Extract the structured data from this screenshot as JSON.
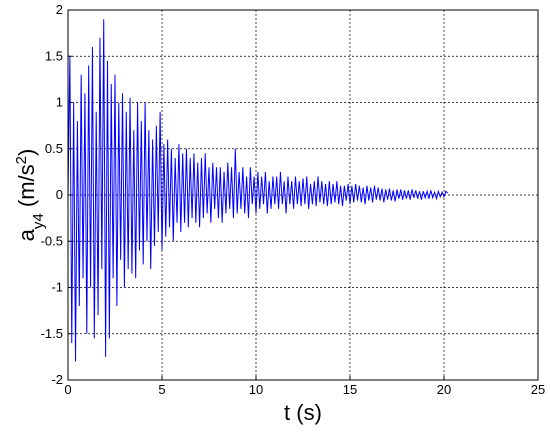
{
  "chart_data": {
    "type": "line",
    "xlabel": "t (s)",
    "ylabel": [
      "a",
      "y4",
      " (m/s",
      "2",
      ")"
    ],
    "color": "#0000ff",
    "grid": true,
    "xlim": [
      0,
      25
    ],
    "xticks": [
      0,
      5,
      10,
      15,
      20,
      25
    ],
    "ylim": [
      -2,
      2
    ],
    "yticks": [
      -2,
      -1.5,
      -1,
      -0.5,
      0,
      0.5,
      1,
      1.5,
      2
    ],
    "x": [
      0,
      0.1,
      0.2,
      0.3,
      0.4,
      0.5,
      0.6,
      0.7,
      0.8,
      0.9,
      1,
      1.1,
      1.2,
      1.3,
      1.4,
      1.5,
      1.6,
      1.7,
      1.8,
      1.9,
      2,
      2.1,
      2.2,
      2.3,
      2.4,
      2.5,
      2.6,
      2.7,
      2.8,
      2.9,
      3,
      3.1,
      3.2,
      3.3,
      3.4,
      3.5,
      3.6,
      3.7,
      3.8,
      3.9,
      4,
      4.1,
      4.2,
      4.3,
      4.4,
      4.5,
      4.6,
      4.7,
      4.8,
      4.9,
      5,
      5.1,
      5.2,
      5.3,
      5.4,
      5.5,
      5.6,
      5.7,
      5.8,
      5.9,
      6,
      6.1,
      6.2,
      6.3,
      6.4,
      6.5,
      6.6,
      6.7,
      6.8,
      6.9,
      7,
      7.1,
      7.2,
      7.3,
      7.4,
      7.5,
      7.6,
      7.7,
      7.8,
      7.9,
      8,
      8.1,
      8.2,
      8.3,
      8.4,
      8.5,
      8.6,
      8.7,
      8.8,
      8.9,
      9,
      9.1,
      9.2,
      9.3,
      9.4,
      9.5,
      9.6,
      9.7,
      9.8,
      9.9,
      10,
      10.1,
      10.2,
      10.3,
      10.4,
      10.5,
      10.6,
      10.7,
      10.8,
      10.9,
      11,
      11.1,
      11.2,
      11.3,
      11.4,
      11.5,
      11.6,
      11.7,
      11.8,
      11.9,
      12,
      12.1,
      12.2,
      12.3,
      12.4,
      12.5,
      12.6,
      12.7,
      12.8,
      12.9,
      13,
      13.1,
      13.2,
      13.3,
      13.4,
      13.5,
      13.6,
      13.7,
      13.8,
      13.9,
      14,
      14.1,
      14.2,
      14.3,
      14.4,
      14.5,
      14.6,
      14.7,
      14.8,
      14.9,
      15,
      15.1,
      15.2,
      15.3,
      15.4,
      15.5,
      15.6,
      15.7,
      15.8,
      15.9,
      16,
      16.1,
      16.2,
      16.3,
      16.4,
      16.5,
      16.6,
      16.7,
      16.8,
      16.9,
      17,
      17.1,
      17.2,
      17.3,
      17.4,
      17.5,
      17.6,
      17.7,
      17.8,
      17.9,
      18,
      18.1,
      18.2,
      18.3,
      18.4,
      18.5,
      18.6,
      18.7,
      18.8,
      18.9,
      19,
      19.1,
      19.2,
      19.3,
      19.4,
      19.5,
      19.6,
      19.7,
      19.8,
      19.9,
      20,
      20.1,
      20.2
    ],
    "values": [
      0,
      1.5,
      -1.6,
      1.0,
      -1.8,
      0.8,
      -1.2,
      1.3,
      -0.9,
      1.1,
      -1.5,
      1.4,
      -1.0,
      1.6,
      -1.55,
      0.9,
      -1.3,
      1.7,
      -0.8,
      1.9,
      -1.75,
      1.45,
      -1.55,
      1.2,
      -0.9,
      1.3,
      -1.2,
      1.0,
      -0.7,
      1.1,
      -1.0,
      0.9,
      -0.8,
      1.05,
      -0.85,
      0.7,
      -0.9,
      1.0,
      -0.6,
      0.8,
      -0.75,
      1.0,
      -0.5,
      0.7,
      -0.8,
      0.6,
      -0.55,
      0.75,
      -0.4,
      0.9,
      -0.6,
      0.55,
      -0.45,
      0.6,
      -0.35,
      0.5,
      -0.5,
      0.4,
      -0.3,
      0.55,
      -0.4,
      0.45,
      -0.3,
      0.5,
      -0.35,
      0.4,
      -0.25,
      0.45,
      -0.3,
      0.35,
      -0.35,
      0.4,
      -0.25,
      0.45,
      -0.2,
      0.3,
      -0.3,
      0.35,
      -0.15,
      0.3,
      -0.25,
      0.3,
      -0.3,
      0.25,
      -0.2,
      0.35,
      -0.15,
      0.3,
      -0.25,
      0.5,
      -0.2,
      0.25,
      -0.15,
      0.3,
      -0.2,
      0.2,
      -0.25,
      0.3,
      -0.1,
      0.2,
      -0.2,
      0.25,
      -0.15,
      0.2,
      -0.1,
      0.25,
      -0.2,
      0.15,
      -0.15,
      0.2,
      -0.1,
      0.2,
      -0.15,
      0.25,
      -0.1,
      0.15,
      -0.2,
      0.2,
      -0.1,
      0.15,
      -0.15,
      0.2,
      -0.1,
      0.15,
      -0.12,
      0.18,
      -0.1,
      0.2,
      -0.15,
      0.12,
      -0.1,
      0.15,
      -0.12,
      0.2,
      -0.08,
      0.15,
      -0.1,
      0.12,
      -0.12,
      0.15,
      -0.1,
      0.12,
      -0.08,
      0.15,
      -0.1,
      0.1,
      -0.12,
      0.1,
      -0.06,
      0.12,
      -0.1,
      0.1,
      -0.08,
      0.12,
      -0.06,
      0.1,
      -0.08,
      0.08,
      -0.1,
      0.1,
      -0.06,
      0.08,
      -0.08,
      0.1,
      -0.05,
      0.08,
      -0.06,
      0.07,
      -0.08,
      0.06,
      -0.05,
      0.07,
      -0.06,
      0.05,
      -0.07,
      0.06,
      -0.04,
      0.06,
      -0.05,
      0.05,
      -0.04,
      0.05,
      -0.05,
      0.06,
      -0.03,
      0.05,
      -0.04,
      0.04,
      -0.05,
      0.04,
      -0.03,
      0.04,
      -0.04,
      0.05,
      -0.03,
      0.03,
      -0.04,
      0.04,
      -0.02,
      0.03,
      -0.02,
      0.04,
      0.02
    ]
  }
}
